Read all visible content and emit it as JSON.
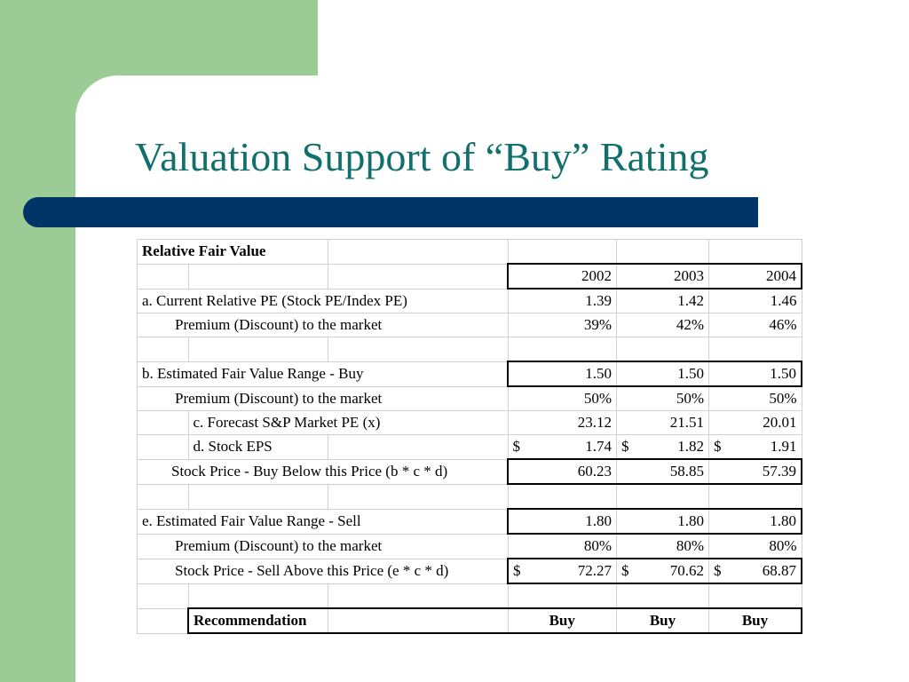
{
  "slide": {
    "title": "Valuation Support of “Buy” Rating"
  },
  "table": {
    "header": "Relative Fair Value",
    "years": [
      "2002",
      "2003",
      "2004"
    ],
    "rows": {
      "current_pe": {
        "label": "a.  Current Relative PE (Stock PE/Index PE)",
        "values": [
          "1.39",
          "1.42",
          "1.46"
        ]
      },
      "premium_current": {
        "label": "Premium (Discount) to the market",
        "values": [
          "39%",
          "42%",
          "46%"
        ]
      },
      "buy_range": {
        "label": "b. Estimated Fair Value Range - Buy",
        "values": [
          "1.50",
          "1.50",
          "1.50"
        ]
      },
      "premium_buy": {
        "label": "Premium (Discount) to the market",
        "values": [
          "50%",
          "50%",
          "50%"
        ]
      },
      "forecast_pe": {
        "label": "c. Forecast S&P Market PE (x)",
        "values": [
          "23.12",
          "21.51",
          "20.01"
        ]
      },
      "stock_eps": {
        "label": "d. Stock EPS",
        "currency": "$",
        "values": [
          "1.74",
          "1.82",
          "1.91"
        ]
      },
      "buy_price": {
        "label": "Stock Price - Buy Below this Price (b * c * d)",
        "values": [
          "60.23",
          "58.85",
          "57.39"
        ]
      },
      "sell_range": {
        "label": "e. Estimated Fair Value Range  - Sell",
        "values": [
          "1.80",
          "1.80",
          "1.80"
        ]
      },
      "premium_sell": {
        "label": "Premium (Discount) to the market",
        "values": [
          "80%",
          "80%",
          "80%"
        ]
      },
      "sell_price": {
        "label": "Stock Price - Sell Above this Price (e * c * d)",
        "currency": "$",
        "values": [
          "72.27",
          "70.62",
          "68.87"
        ]
      },
      "recommendation": {
        "label": "Recommendation",
        "values": [
          "Buy",
          "Buy",
          "Buy"
        ]
      }
    }
  }
}
